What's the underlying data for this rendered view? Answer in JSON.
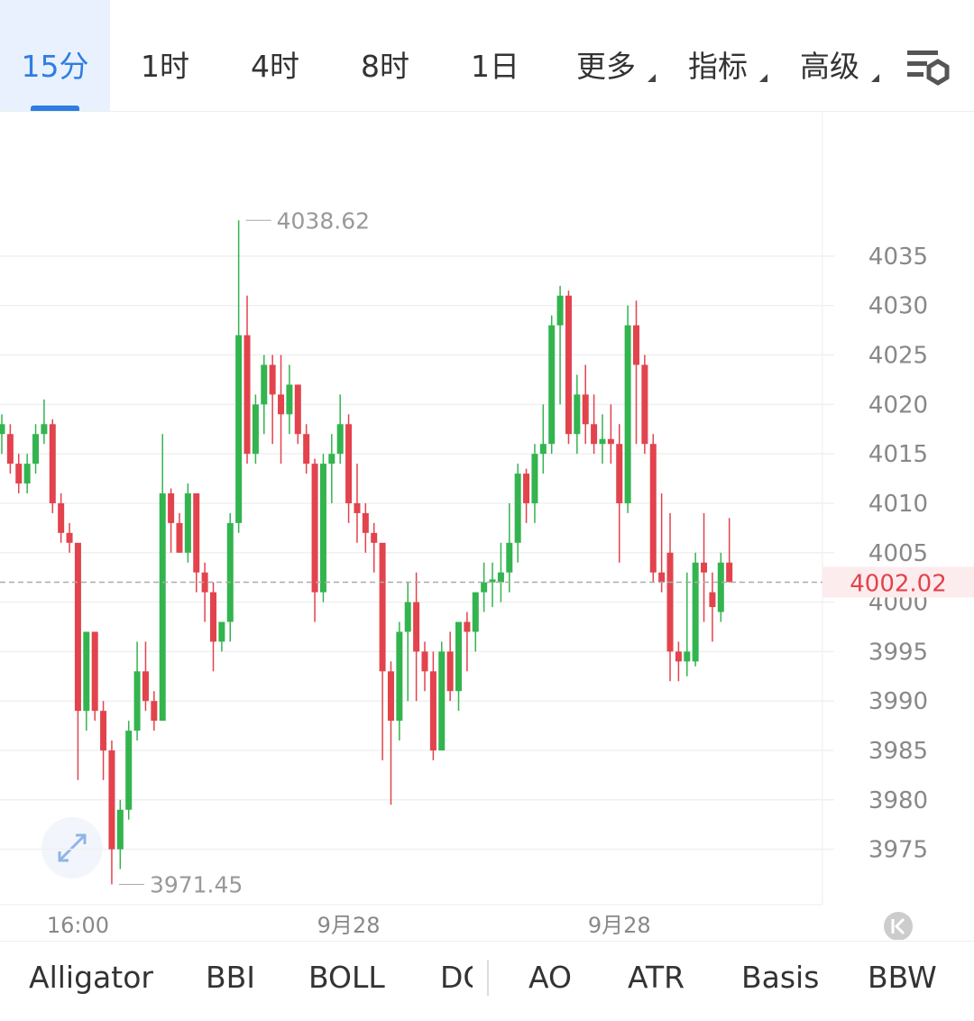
{
  "tabs": [
    "15分",
    "1时",
    "4时",
    "8时",
    "1日",
    "更多",
    "指标",
    "高级"
  ],
  "indicators": [
    "Alligator",
    "BBI",
    "BOLL",
    "DC",
    "AO",
    "ATR",
    "Basis",
    "BBW"
  ],
  "chart_data": {
    "type": "candlestick",
    "up_color": "#33b44f",
    "down_color": "#e2434d",
    "categories": [
      null,
      null,
      null,
      null,
      null,
      null,
      null,
      null,
      null,
      "16:00",
      null,
      null,
      null,
      null,
      null,
      null,
      null,
      null,
      null,
      null,
      null,
      null,
      null,
      null,
      null,
      null,
      null,
      null,
      null,
      null,
      null,
      null,
      null,
      null,
      null,
      null,
      null,
      null,
      null,
      null,
      null,
      "9月28",
      null,
      null,
      null,
      null,
      null,
      null,
      null,
      null,
      null,
      null,
      null,
      null,
      null,
      null,
      null,
      null,
      null,
      null,
      null,
      null,
      null,
      null,
      null,
      null,
      null,
      null,
      null,
      null,
      null,
      null,
      null,
      "9月28",
      null,
      null,
      null,
      null,
      null,
      null,
      null,
      null,
      null,
      null,
      null,
      null,
      null
    ],
    "open": [
      4017,
      4017,
      4014,
      4012,
      4014,
      4017,
      4018,
      4010,
      4007,
      4006,
      3989,
      3997,
      3989,
      3985,
      3975,
      3979,
      3987,
      3993,
      3990,
      3988,
      4011,
      4008,
      4005,
      4011,
      4003,
      4001,
      3996,
      3998,
      4008,
      4027,
      4015,
      4020,
      4024,
      4021,
      4019,
      4022,
      4017,
      4014,
      4001,
      4014,
      4015,
      4018,
      4010,
      4009,
      4007,
      4006,
      3993,
      3988,
      3997,
      4000,
      3995,
      3993,
      3985,
      3995,
      3991,
      3998,
      3997,
      4001,
      4002,
      4002,
      4003,
      4006,
      4013,
      4010,
      4015,
      4016,
      4028,
      4031,
      4017,
      4021,
      4018,
      4016,
      4016.5,
      4016,
      4010,
      4028,
      4024,
      4016,
      4003,
      4005,
      3995,
      3994,
      3994,
      4004,
      4001,
      3999,
      4004
    ],
    "high": [
      4019,
      4018,
      4015,
      4015,
      4018,
      4020.5,
      4018.5,
      4011,
      4008,
      4006,
      3997,
      3997,
      3990,
      3986,
      3980,
      3988,
      3996,
      3996,
      3991,
      4017,
      4011.5,
      4009,
      4012,
      4011,
      4004,
      4002,
      3998,
      4009,
      4038.62,
      4031,
      4021,
      4025,
      4025,
      4025,
      4024,
      4022,
      4018,
      4014.5,
      4015,
      4017,
      4021,
      4019,
      4014,
      4010,
      4008,
      4006,
      3994,
      3998,
      4002,
      4003,
      3996,
      3995,
      3996,
      3997,
      3998,
      3999,
      4001,
      4004,
      4004,
      4006,
      4010,
      4014,
      4013.5,
      4016,
      4020,
      4029,
      4032,
      4031.5,
      4023,
      4024,
      4021,
      4019,
      4020,
      4018,
      4030,
      4030.5,
      4025,
      4017,
      4011,
      4009,
      3996,
      4003,
      4005,
      4009,
      4003,
      4005,
      4008.5
    ],
    "low": [
      4015,
      4013,
      4011,
      4011,
      4013,
      4016,
      4009,
      4006,
      4005,
      3982,
      3987,
      3988,
      3982,
      3971.45,
      3973,
      3978,
      3986,
      3989,
      3987,
      3988,
      4005,
      4005,
      4004,
      4001,
      3998,
      3993,
      3995,
      3996,
      4007,
      4014,
      4014,
      4017,
      4016,
      4014,
      4017,
      4016,
      4013,
      3998,
      4000,
      4010,
      4014,
      4008,
      4006,
      4005,
      4003,
      3984,
      3979.5,
      3986,
      3990,
      3990,
      3991,
      3984,
      3985,
      3990,
      3989,
      3993,
      3995,
      3999,
      3999.5,
      4000,
      4001,
      4004,
      4008,
      4008,
      4013,
      4015,
      4020,
      4016,
      4015,
      4016,
      4015,
      4014,
      4014,
      4004,
      4009,
      4016,
      4015,
      4002,
      4001,
      3992,
      3992,
      3992.5,
      3993.5,
      3998,
      3996,
      3998,
      4002
    ],
    "close": [
      4018,
      4014,
      4012,
      4014,
      4017,
      4018,
      4010,
      4007,
      4006,
      3989,
      3997,
      3989,
      3985,
      3975,
      3979,
      3987,
      3993,
      3990,
      3988,
      4011,
      4008,
      4005,
      4011,
      4003,
      4001,
      3996,
      3998,
      4008,
      4027,
      4015,
      4020,
      4024,
      4021,
      4019,
      4022,
      4017,
      4014,
      4001,
      4014,
      4015,
      4018,
      4010,
      4009,
      4007,
      4006,
      3993,
      3988,
      3997,
      4000,
      3995,
      3993,
      3985,
      3995,
      3991,
      3998,
      3997,
      4001,
      4002,
      4002.3,
      4003,
      4006,
      4013,
      4010,
      4015,
      4016,
      4028,
      4031,
      4017,
      4021,
      4018,
      4016,
      4016.5,
      4016,
      4010,
      4028,
      4024,
      4016,
      4003,
      4002,
      3995,
      3994,
      3995,
      4004,
      4003,
      3999.5,
      4004,
      4002.02
    ],
    "ylim": [
      3969.4,
      4049.5
    ],
    "yticks": [
      3975,
      3980,
      3985,
      3990,
      3995,
      4000,
      4005,
      4010,
      4015,
      4020,
      4025,
      4030,
      4035
    ],
    "grid": true,
    "high_annotation": 4038.62,
    "low_annotation": 3971.45,
    "last_price": 4002.02
  }
}
